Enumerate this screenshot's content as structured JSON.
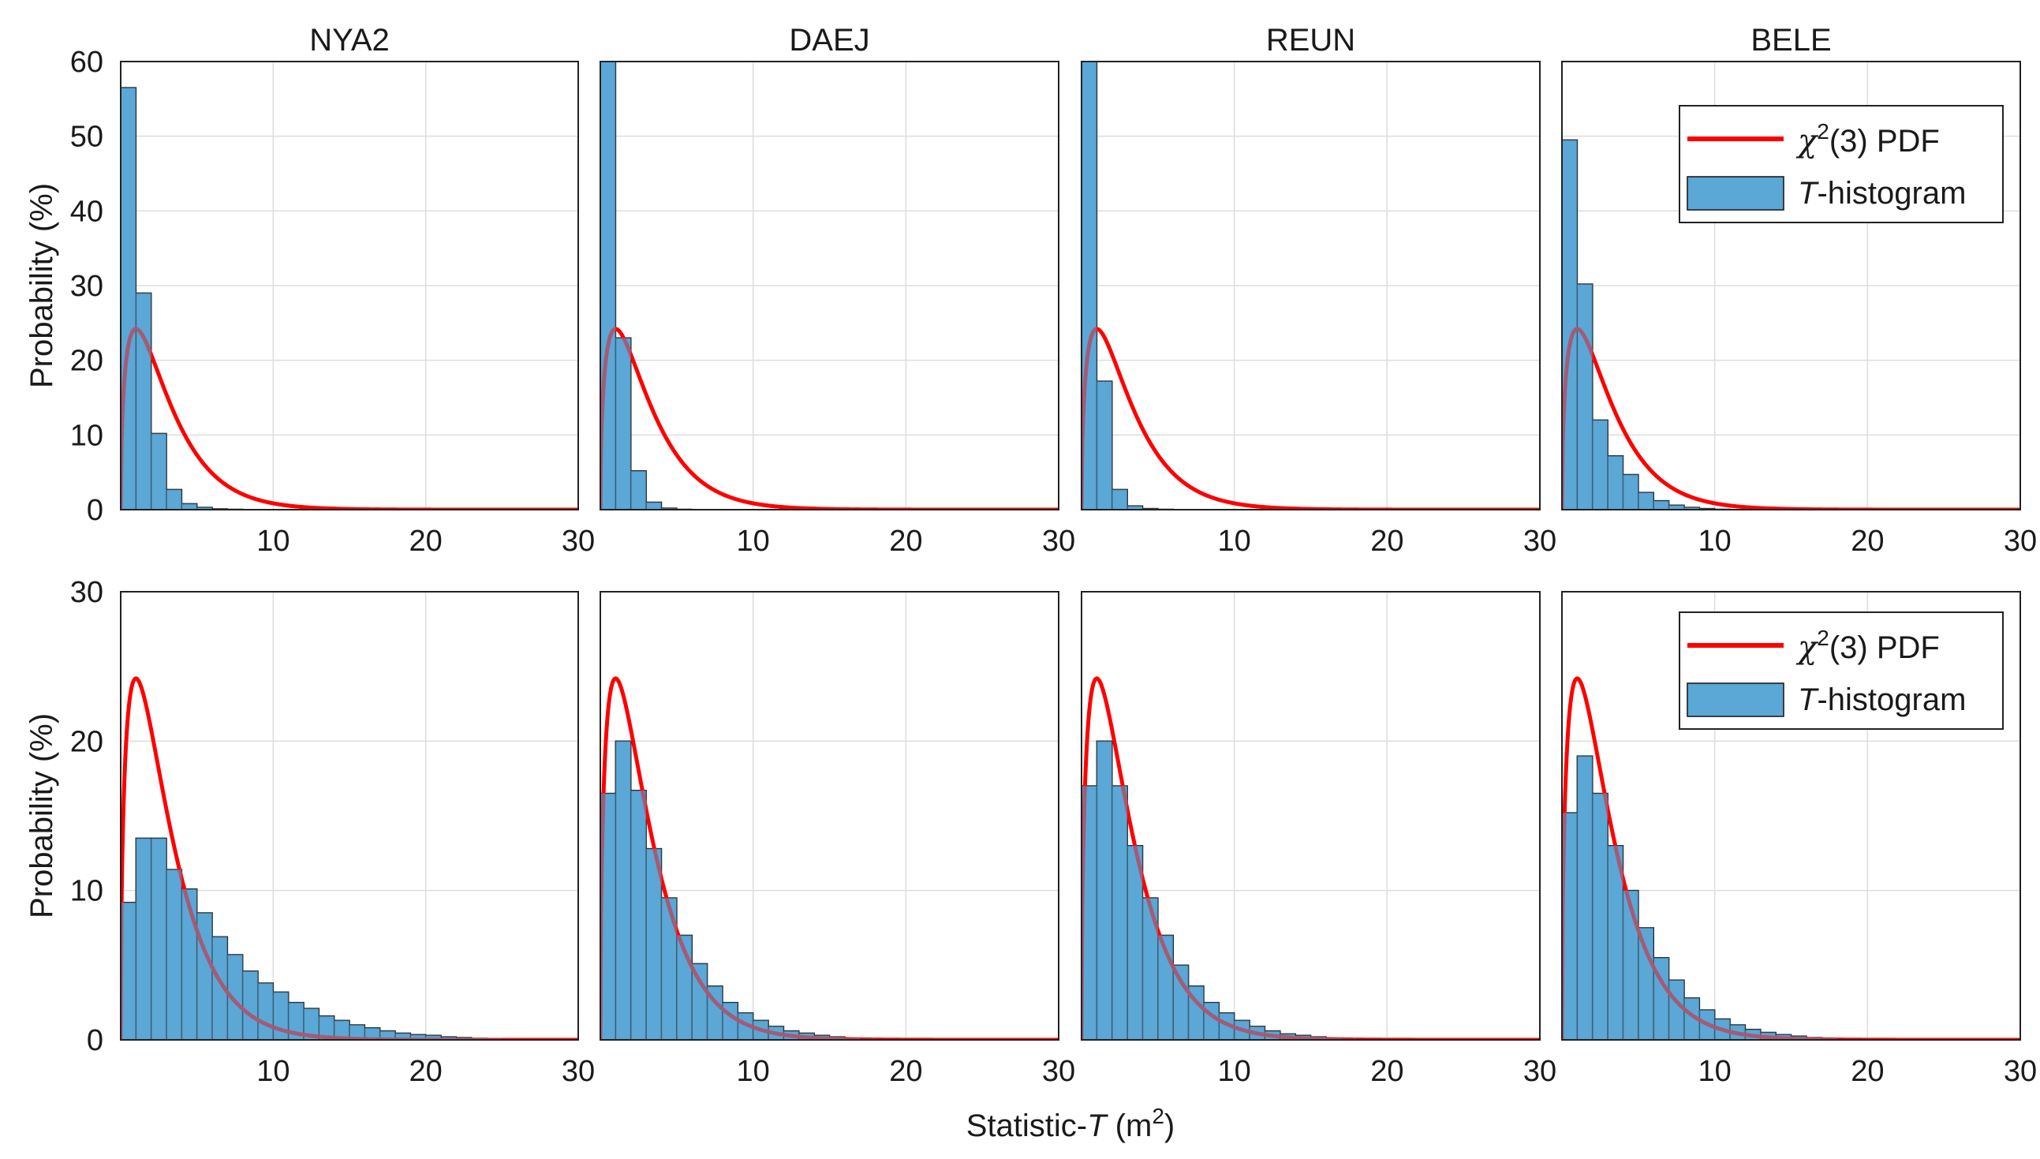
{
  "figure": {
    "xlabel": {
      "prefix": "Statistic-",
      "var": "T",
      "unit_open": " (m",
      "unit_exp": "2",
      "unit_close": ")"
    },
    "row_ylabel": "Probability (%)",
    "colors": {
      "pdf": "#ff0000",
      "bar_fill": "#5ba7d6",
      "bar_edge": "#1c1c1c",
      "grid": "#dddddd",
      "frame": "#222222"
    },
    "legend": {
      "pdf_label": {
        "chi": "χ",
        "exp": "2",
        "rest": "(3) PDF"
      },
      "hist_label": {
        "var": "T",
        "rest": "-histogram"
      }
    }
  },
  "chart_data": [
    {
      "type": "bar",
      "row": 0,
      "col": 0,
      "title": "NYA2",
      "xlim": [
        0,
        30
      ],
      "ylim": [
        0,
        60
      ],
      "xticks": [
        10,
        20,
        30
      ],
      "yticks": [
        0,
        10,
        20,
        30,
        40,
        50,
        60
      ],
      "bin_width": 1,
      "values": [
        56.5,
        29,
        10.2,
        2.7,
        0.8,
        0.3,
        0.1,
        0.05
      ],
      "pdf": "chi2_3",
      "legend": false
    },
    {
      "type": "bar",
      "row": 0,
      "col": 1,
      "title": "DAEJ",
      "xlim": [
        0,
        30
      ],
      "ylim": [
        0,
        60
      ],
      "xticks": [
        10,
        20,
        30
      ],
      "yticks": [],
      "bin_width": 1,
      "values": [
        61,
        23,
        5.2,
        1,
        0.2,
        0.05
      ],
      "pdf": "chi2_3",
      "legend": false
    },
    {
      "type": "bar",
      "row": 0,
      "col": 2,
      "title": "REUN",
      "xlim": [
        0,
        30
      ],
      "ylim": [
        0,
        60
      ],
      "xticks": [
        10,
        20,
        30
      ],
      "yticks": [],
      "bin_width": 1,
      "values": [
        61,
        17.2,
        2.7,
        0.5,
        0.15,
        0.05
      ],
      "pdf": "chi2_3",
      "legend": false
    },
    {
      "type": "bar",
      "row": 0,
      "col": 3,
      "title": "BELE",
      "xlim": [
        0,
        30
      ],
      "ylim": [
        0,
        60
      ],
      "xticks": [
        10,
        20,
        30
      ],
      "yticks": [],
      "bin_width": 1,
      "values": [
        49.5,
        30.2,
        12,
        7.2,
        4.7,
        2.3,
        1.2,
        0.6,
        0.3,
        0.15,
        0.05
      ],
      "pdf": "chi2_3",
      "legend": true
    },
    {
      "type": "bar",
      "row": 1,
      "col": 0,
      "title": "",
      "xlim": [
        0,
        30
      ],
      "ylim": [
        0,
        30
      ],
      "xticks": [
        10,
        20,
        30
      ],
      "yticks": [
        0,
        10,
        20,
        30
      ],
      "bin_width": 1,
      "values": [
        9.2,
        13.5,
        13.5,
        11.4,
        10.1,
        8.5,
        6.9,
        5.7,
        4.6,
        3.8,
        3.2,
        2.5,
        2.1,
        1.6,
        1.3,
        1,
        0.8,
        0.6,
        0.45,
        0.35,
        0.3,
        0.2,
        0.15,
        0.1,
        0.08,
        0.06,
        0.04,
        0.03,
        0.02,
        0.01
      ],
      "pdf": "chi2_3",
      "legend": false
    },
    {
      "type": "bar",
      "row": 1,
      "col": 1,
      "title": "",
      "xlim": [
        0,
        30
      ],
      "ylim": [
        0,
        30
      ],
      "xticks": [
        10,
        20,
        30
      ],
      "yticks": [],
      "bin_width": 1,
      "values": [
        16.5,
        20,
        16.7,
        12.8,
        9.5,
        7,
        5.1,
        3.6,
        2.5,
        1.8,
        1.3,
        0.9,
        0.6,
        0.45,
        0.3,
        0.2,
        0.12,
        0.08,
        0.05,
        0.03,
        0.02,
        0.01
      ],
      "pdf": "chi2_3",
      "legend": false
    },
    {
      "type": "bar",
      "row": 1,
      "col": 2,
      "title": "",
      "xlim": [
        0,
        30
      ],
      "ylim": [
        0,
        30
      ],
      "xticks": [
        10,
        20,
        30
      ],
      "yticks": [],
      "bin_width": 1,
      "values": [
        17,
        20,
        17,
        13,
        9.5,
        7,
        5,
        3.6,
        2.5,
        1.8,
        1.3,
        0.9,
        0.6,
        0.4,
        0.3,
        0.2,
        0.12,
        0.08,
        0.05,
        0.03,
        0.02,
        0.01
      ],
      "pdf": "chi2_3",
      "legend": false
    },
    {
      "type": "bar",
      "row": 1,
      "col": 3,
      "title": "",
      "xlim": [
        0,
        30
      ],
      "ylim": [
        0,
        30
      ],
      "xticks": [
        10,
        20,
        30
      ],
      "yticks": [],
      "bin_width": 1,
      "values": [
        15.2,
        19,
        16.5,
        13,
        10,
        7.5,
        5.5,
        4,
        2.8,
        2,
        1.4,
        1,
        0.7,
        0.5,
        0.35,
        0.25,
        0.15,
        0.1,
        0.06,
        0.04,
        0.02,
        0.01
      ],
      "pdf": "chi2_3",
      "legend": true
    }
  ]
}
